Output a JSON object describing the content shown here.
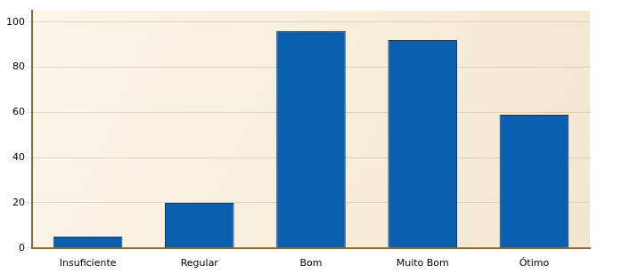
{
  "chart_data": {
    "type": "bar",
    "categories": [
      "Insuficiente",
      "Regular",
      "Bom",
      "Muito Bom",
      "Ótimo"
    ],
    "values": [
      5,
      20,
      96,
      92,
      59
    ],
    "color": "#0b5fb0",
    "ylim": [
      0,
      105
    ],
    "yticks": [
      0,
      20,
      40,
      60,
      80,
      100
    ],
    "grid": true
  }
}
